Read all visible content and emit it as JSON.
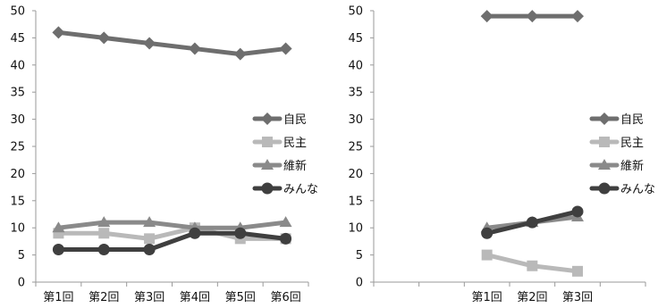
{
  "chart_data": [
    {
      "type": "line",
      "categories": [
        "第1回",
        "第2回",
        "第3回",
        "第4回",
        "第5回",
        "第6回"
      ],
      "ylim": [
        0,
        50
      ],
      "yticks": [
        0,
        5,
        10,
        15,
        20,
        25,
        30,
        35,
        40,
        45,
        50
      ],
      "series": [
        {
          "name": "自民",
          "color": "#6e6e6e",
          "marker": "diamond",
          "values": [
            46,
            45,
            44,
            43,
            42,
            43
          ]
        },
        {
          "name": "民主",
          "color": "#b9b9b9",
          "marker": "square",
          "values": [
            9,
            9,
            8,
            10,
            8,
            8
          ]
        },
        {
          "name": "維新",
          "color": "#8a8a8a",
          "marker": "triangle",
          "values": [
            10,
            11,
            11,
            10,
            10,
            11
          ]
        },
        {
          "name": "みんな",
          "color": "#3f3f3f",
          "marker": "circle",
          "values": [
            6,
            6,
            6,
            9,
            9,
            8
          ]
        }
      ],
      "legend": "right"
    },
    {
      "type": "line",
      "categories": [
        "",
        "",
        "第1回",
        "第2回",
        "第3回",
        ""
      ],
      "ylim": [
        0,
        50
      ],
      "yticks": [
        0,
        5,
        10,
        15,
        20,
        25,
        30,
        35,
        40,
        45,
        50
      ],
      "series": [
        {
          "name": "自民",
          "color": "#6e6e6e",
          "marker": "diamond",
          "values": [
            null,
            null,
            49,
            49,
            49,
            null
          ]
        },
        {
          "name": "民主",
          "color": "#b9b9b9",
          "marker": "square",
          "values": [
            null,
            null,
            5,
            3,
            2,
            null
          ]
        },
        {
          "name": "維新",
          "color": "#8a8a8a",
          "marker": "triangle",
          "values": [
            null,
            null,
            10,
            11,
            12,
            null
          ]
        },
        {
          "name": "みんな",
          "color": "#3f3f3f",
          "marker": "circle",
          "values": [
            null,
            null,
            9,
            11,
            13,
            null
          ]
        }
      ],
      "legend": "right"
    }
  ]
}
